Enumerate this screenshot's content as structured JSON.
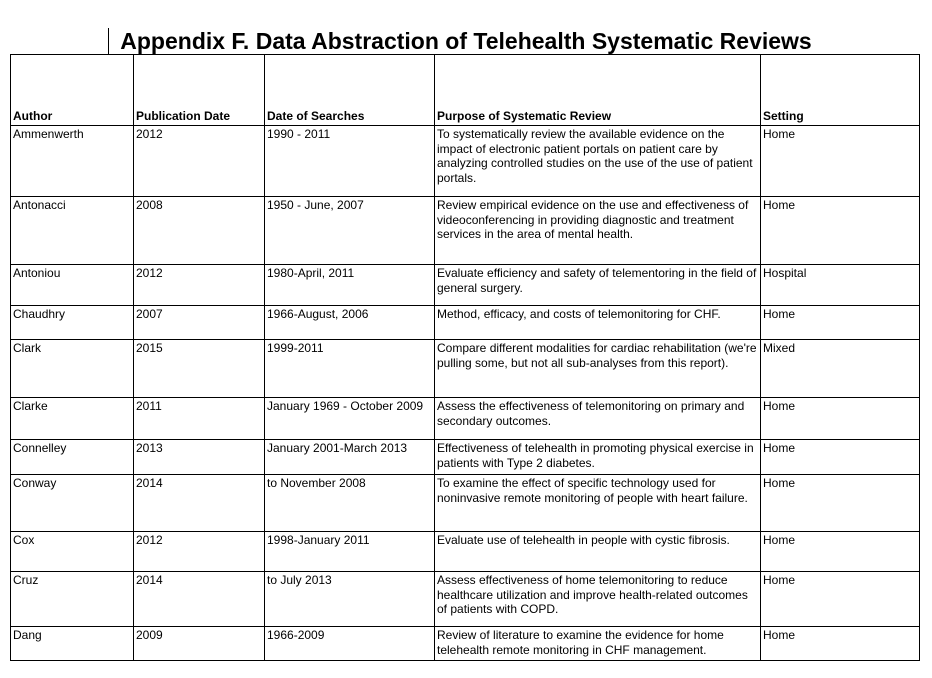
{
  "title": "Appendix F. Data Abstraction of Telehealth Systematic Reviews",
  "table": {
    "headers": [
      "Author",
      "Publication Date",
      "Date of Searches",
      "Purpose of Systematic Review",
      "Setting"
    ],
    "rows": [
      [
        "Ammenwerth",
        "2012",
        "1990 - 2011",
        "To systematically review the available evidence on the impact of electronic patient portals on patient care by analyzing controlled studies on the use of the use of patient portals.",
        "Home"
      ],
      [
        "Antonacci",
        "2008",
        "1950 - June, 2007",
        "Review empirical evidence on the use and effectiveness of videoconferencing in providing diagnostic and treatment services in the area of mental health.",
        "Home"
      ],
      [
        "Antoniou",
        "2012",
        "1980-April,  2011",
        "Evaluate efficiency and safety of telementoring in the field of general surgery.",
        "Hospital"
      ],
      [
        "Chaudhry",
        "2007",
        "1966-August, 2006",
        "Method, efficacy, and costs of telemonitoring for CHF.",
        "Home"
      ],
      [
        "Clark",
        "2015",
        "1999-2011",
        "Compare different modalities for cardiac rehabilitation (we're pulling some, but not all sub-analyses from this report).",
        "Mixed"
      ],
      [
        "Clarke",
        "2011",
        "January 1969 - October 2009",
        "Assess the effectiveness of telemonitoring on primary and secondary outcomes.",
        "Home"
      ],
      [
        "Connelley",
        "2013",
        "January 2001-March 2013",
        "Effectiveness of telehealth in promoting physical exercise in patients with Type 2 diabetes.",
        "Home"
      ],
      [
        "Conway",
        "2014",
        "to November 2008",
        "To examine the effect of specific technology used for noninvasive remote monitoring of people with heart failure.",
        "Home"
      ],
      [
        "Cox",
        "2012",
        "1998-January 2011",
        "Evaluate use of telehealth in people with cystic fibrosis.",
        "Home"
      ],
      [
        "Cruz",
        "2014",
        "to July 2013",
        "Assess effectiveness of home telemonitoring to reduce healthcare utilization and improve health-related outcomes of patients with COPD.",
        "Home"
      ],
      [
        "Dang",
        "2009",
        "1966-2009",
        "Review of  literature to examine the evidence for home telehealth remote monitoring in CHF management.",
        "Home"
      ]
    ]
  }
}
